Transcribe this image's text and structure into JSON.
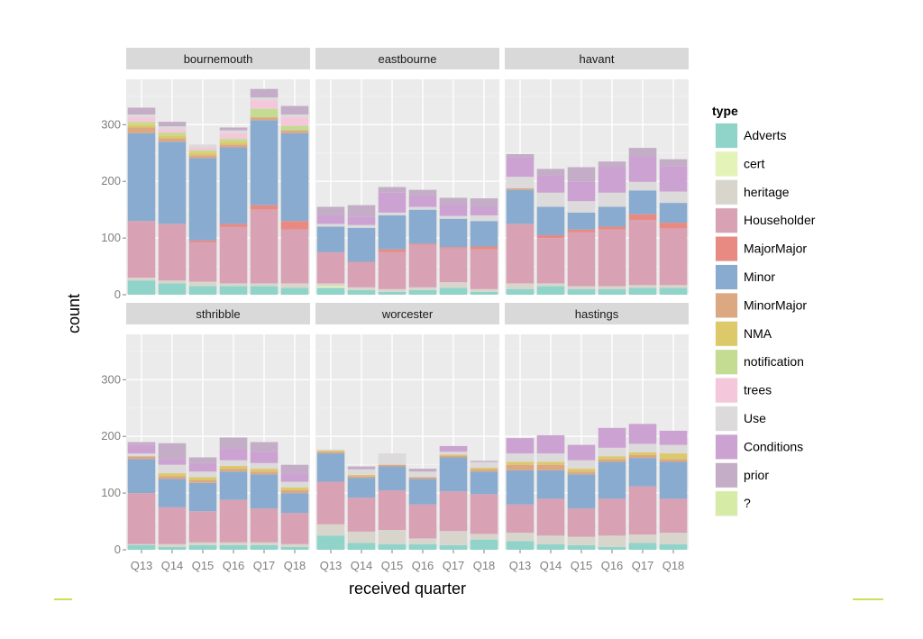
{
  "chart_data": {
    "type": "bar",
    "stacked": true,
    "xlabel": "received quarter",
    "ylabel": "count",
    "ylim": [
      0,
      380
    ],
    "yticks": [
      0,
      100,
      200,
      300
    ],
    "categories": [
      "Q13",
      "Q14",
      "Q15",
      "Q16",
      "Q17",
      "Q18"
    ],
    "legend_title": "type",
    "types": [
      "Adverts",
      "cert",
      "heritage",
      "Householder",
      "MajorMajor",
      "Minor",
      "MinorMajor",
      "NMA",
      "notification",
      "trees",
      "Use",
      "Conditions",
      "prior",
      "?"
    ],
    "colors": {
      "Adverts": "#8fd3c9",
      "cert": "#e4f4b8",
      "heritage": "#d8d6cc",
      "Householder": "#d8a1b4",
      "MajorMajor": "#e88a82",
      "Minor": "#89abcf",
      "MinorMajor": "#dca882",
      "NMA": "#dcc96a",
      "notification": "#c3dc91",
      "trees": "#f5c7db",
      "Use": "#dcdadb",
      "Conditions": "#cba2d1",
      "prior": "#c4adc6",
      "?": "#d6eba6"
    },
    "panels": [
      {
        "name": "bournemouth",
        "bars": [
          {
            "Adverts": 25,
            "heritage": 5,
            "Householder": 100,
            "Minor": 155,
            "MinorMajor": 10,
            "NMA": 5,
            "notification": 5,
            "trees": 8,
            "Use": 5,
            "prior": 12
          },
          {
            "Adverts": 20,
            "heritage": 5,
            "Householder": 100,
            "Minor": 145,
            "MinorMajor": 6,
            "NMA": 5,
            "notification": 5,
            "trees": 6,
            "Use": 5,
            "prior": 8
          },
          {
            "Adverts": 15,
            "heritage": 8,
            "Householder": 70,
            "MajorMajor": 3,
            "Minor": 145,
            "MinorMajor": 5,
            "NMA": 5,
            "notification": 4,
            "trees": 5,
            "Use": 5
          },
          {
            "Adverts": 15,
            "heritage": 5,
            "Householder": 100,
            "MajorMajor": 5,
            "Minor": 135,
            "MinorMajor": 5,
            "NMA": 5,
            "notification": 5,
            "trees": 10,
            "Use": 5,
            "prior": 5
          },
          {
            "Adverts": 15,
            "heritage": 5,
            "Householder": 130,
            "MajorMajor": 8,
            "Minor": 150,
            "MinorMajor": 5,
            "notification": 15,
            "trees": 15,
            "Use": 5,
            "prior": 15
          },
          {
            "Adverts": 12,
            "heritage": 8,
            "Householder": 95,
            "MajorMajor": 15,
            "Minor": 155,
            "MinorMajor": 5,
            "notification": 8,
            "trees": 15,
            "Use": 5,
            "prior": 15
          }
        ]
      },
      {
        "name": "eastbourne",
        "bars": [
          {
            "Adverts": 12,
            "cert": 3,
            "heritage": 5,
            "Householder": 55,
            "Minor": 45,
            "Use": 5,
            "Conditions": 15,
            "prior": 15
          },
          {
            "Adverts": 8,
            "heritage": 5,
            "Householder": 45,
            "Minor": 60,
            "Use": 5,
            "Conditions": 15,
            "prior": 20
          },
          {
            "Adverts": 5,
            "heritage": 5,
            "Householder": 65,
            "MajorMajor": 5,
            "Minor": 60,
            "Use": 5,
            "Conditions": 35,
            "prior": 10
          },
          {
            "Adverts": 8,
            "heritage": 5,
            "Householder": 75,
            "MajorMajor": 2,
            "Minor": 60,
            "Use": 5,
            "Conditions": 20,
            "prior": 10
          },
          {
            "Adverts": 12,
            "heritage": 10,
            "Householder": 60,
            "MajorMajor": 2,
            "Minor": 50,
            "Use": 5,
            "Conditions": 20,
            "prior": 12
          },
          {
            "Adverts": 5,
            "heritage": 5,
            "Householder": 70,
            "MajorMajor": 5,
            "Minor": 45,
            "Use": 10,
            "Conditions": 15,
            "prior": 15
          }
        ]
      },
      {
        "name": "havant",
        "bars": [
          {
            "Adverts": 10,
            "heritage": 10,
            "Householder": 105,
            "Minor": 60,
            "MinorMajor": 3,
            "Use": 20,
            "Conditions": 35,
            "prior": 5
          },
          {
            "Adverts": 15,
            "heritage": 5,
            "Householder": 80,
            "MajorMajor": 5,
            "Minor": 50,
            "Use": 25,
            "Conditions": 30,
            "prior": 12
          },
          {
            "Adverts": 10,
            "heritage": 5,
            "Householder": 95,
            "MajorMajor": 5,
            "Minor": 30,
            "Use": 20,
            "Conditions": 35,
            "prior": 25
          },
          {
            "Adverts": 10,
            "heritage": 5,
            "Householder": 100,
            "MajorMajor": 5,
            "Minor": 35,
            "Use": 25,
            "Conditions": 45,
            "prior": 10
          },
          {
            "Adverts": 12,
            "heritage": 5,
            "Householder": 115,
            "MajorMajor": 10,
            "Minor": 42,
            "Use": 15,
            "Conditions": 45,
            "prior": 15
          },
          {
            "Adverts": 12,
            "heritage": 5,
            "Householder": 100,
            "MajorMajor": 10,
            "Minor": 35,
            "Use": 20,
            "Conditions": 45,
            "prior": 12
          }
        ]
      },
      {
        "name": "sthribble",
        "bars": [
          {
            "Adverts": 8,
            "heritage": 2,
            "Householder": 90,
            "Minor": 60,
            "MinorMajor": 5,
            "Use": 5,
            "Conditions": 15,
            "prior": 5
          },
          {
            "Adverts": 5,
            "heritage": 5,
            "Householder": 65,
            "Minor": 50,
            "MinorMajor": 5,
            "NMA": 5,
            "Use": 15,
            "Conditions": 10,
            "prior": 28
          },
          {
            "Adverts": 8,
            "heritage": 5,
            "Householder": 55,
            "Minor": 50,
            "MinorMajor": 5,
            "NMA": 5,
            "Use": 10,
            "Conditions": 15,
            "prior": 10
          },
          {
            "Adverts": 8,
            "heritage": 5,
            "Householder": 75,
            "Minor": 50,
            "MinorMajor": 5,
            "NMA": 5,
            "Use": 10,
            "Conditions": 20,
            "prior": 20
          },
          {
            "Adverts": 8,
            "heritage": 5,
            "Householder": 60,
            "Minor": 60,
            "MinorMajor": 5,
            "NMA": 5,
            "Use": 10,
            "Conditions": 20,
            "prior": 17
          },
          {
            "Adverts": 5,
            "heritage": 5,
            "Householder": 55,
            "Minor": 35,
            "MinorMajor": 5,
            "NMA": 5,
            "Use": 10,
            "Conditions": 15,
            "prior": 15
          }
        ]
      },
      {
        "name": "worcester",
        "bars": [
          {
            "Adverts": 25,
            "heritage": 20,
            "Householder": 75,
            "Minor": 50,
            "MinorMajor": 3,
            "NMA": 2,
            "Use": 2
          },
          {
            "Adverts": 12,
            "heritage": 20,
            "Householder": 60,
            "Minor": 35,
            "MinorMajor": 3,
            "NMA": 2,
            "Use": 10,
            "prior": 5
          },
          {
            "Adverts": 10,
            "heritage": 25,
            "Householder": 70,
            "Minor": 42,
            "MinorMajor": 3,
            "Use": 20
          },
          {
            "Adverts": 10,
            "heritage": 10,
            "Householder": 60,
            "Minor": 45,
            "MinorMajor": 3,
            "Use": 10,
            "prior": 5
          },
          {
            "Adverts": 8,
            "heritage": 25,
            "Householder": 70,
            "Minor": 60,
            "MinorMajor": 3,
            "NMA": 2,
            "Use": 5,
            "Conditions": 10
          },
          {
            "Adverts": 18,
            "heritage": 10,
            "Householder": 70,
            "Minor": 40,
            "MinorMajor": 4,
            "NMA": 3,
            "Use": 10,
            "prior": 2
          }
        ]
      },
      {
        "name": "hastings",
        "bars": [
          {
            "Adverts": 15,
            "heritage": 15,
            "Householder": 50,
            "Minor": 60,
            "MinorMajor": 10,
            "NMA": 5,
            "Use": 15,
            "Conditions": 27
          },
          {
            "Adverts": 10,
            "heritage": 15,
            "Householder": 65,
            "Minor": 50,
            "MinorMajor": 10,
            "NMA": 5,
            "Use": 15,
            "Conditions": 32
          },
          {
            "Adverts": 8,
            "heritage": 15,
            "Householder": 50,
            "Minor": 60,
            "MinorMajor": 5,
            "NMA": 5,
            "Use": 15,
            "Conditions": 27
          },
          {
            "Adverts": 5,
            "heritage": 20,
            "Householder": 65,
            "Minor": 65,
            "MinorMajor": 5,
            "NMA": 5,
            "Use": 15,
            "Conditions": 35
          },
          {
            "Adverts": 12,
            "heritage": 15,
            "Householder": 85,
            "Minor": 50,
            "MinorMajor": 5,
            "NMA": 5,
            "Use": 15,
            "Conditions": 35
          },
          {
            "Adverts": 10,
            "heritage": 20,
            "Householder": 60,
            "Minor": 65,
            "MinorMajor": 5,
            "NMA": 10,
            "Use": 15,
            "Conditions": 25
          }
        ]
      }
    ]
  },
  "decor": {
    "accent": "#c8e05a"
  }
}
